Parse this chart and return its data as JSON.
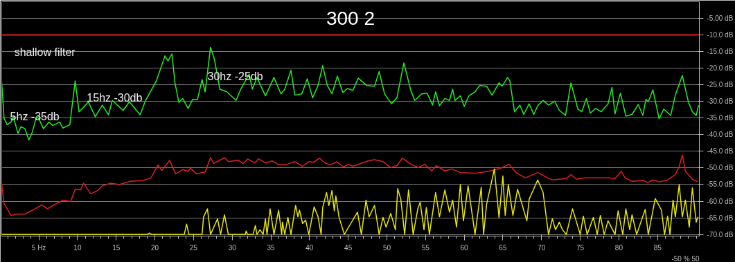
{
  "chart_data": {
    "type": "line",
    "title": "300 2",
    "xlim": [
      0.2,
      90.4
    ],
    "ylim": [
      -70.5,
      0
    ],
    "xticks": [
      {
        "value": 5,
        "label": "5 Hz"
      },
      10,
      15,
      20,
      25,
      30,
      35,
      40,
      45,
      50,
      55,
      60,
      65,
      70,
      75,
      80,
      85
    ],
    "yticks": [
      {
        "value": -5,
        "label": "-5.00 dB"
      },
      {
        "value": -10,
        "label": "-10.0 dB"
      },
      {
        "value": -15,
        "label": "-15.0 dB"
      },
      {
        "value": -20,
        "label": "-20.0 dB"
      },
      {
        "value": -25,
        "label": "-25.0 dB"
      },
      {
        "value": -30,
        "label": "-30.0 dB"
      },
      {
        "value": -35,
        "label": "-35.0 dB"
      },
      {
        "value": -40,
        "label": "-40.0 dB"
      },
      {
        "value": -45,
        "label": "-45.0 dB"
      },
      {
        "value": -50,
        "label": "-50.0 dB"
      },
      {
        "value": -55,
        "label": "-55.0 dB"
      },
      {
        "value": -60,
        "label": "-60.0 dB"
      },
      {
        "value": -65,
        "label": "-65.0 dB"
      },
      {
        "value": -70,
        "label": "-70.0 dB"
      }
    ],
    "grid": "y",
    "marker": "none",
    "line_style": "solid",
    "ref_lines": [
      {
        "axis": "y",
        "value": -10,
        "color": "#e02020"
      }
    ],
    "annotations": [
      "shallow filter",
      "5hz -35db",
      "15hz -30db",
      "30hz -25db",
      "-50 % 50"
    ],
    "series": [
      {
        "color": "#22ee22",
        "x": [
          0.2,
          0.5,
          0.9,
          1.4,
          1.7,
          2.3,
          2.7,
          3.2,
          3.7,
          4.1,
          4.7,
          5.0,
          5.6,
          6.3,
          6.8,
          7.7,
          8.1,
          9.0,
          9.7,
          10.2,
          10.8,
          11.4,
          12.3,
          13.2,
          14.0,
          14.5,
          15.9,
          16.7,
          18.1,
          18.8,
          20.2,
          20.5,
          21.3,
          21.7,
          22.2,
          22.6,
          23.1,
          23.6,
          24.3,
          24.9,
          25.5,
          26.1,
          26.5,
          27.2,
          27.7,
          28.4,
          29.3,
          30.5,
          31.1,
          32.2,
          32.6,
          33.2,
          34.3,
          35.4,
          36.3,
          36.8,
          37.6,
          38.1,
          39.0,
          39.7,
          40.4,
          41.1,
          41.7,
          42.3,
          42.9,
          43.6,
          44.3,
          44.9,
          45.6,
          46.3,
          47.4,
          48.4,
          49.0,
          49.7,
          50.6,
          51.3,
          52.2,
          53.1,
          53.6,
          54.5,
          55.2,
          55.9,
          56.3,
          56.8,
          57.5,
          58.1,
          58.5,
          58.8,
          59.5,
          60.0,
          60.6,
          61.4,
          62.0,
          62.9,
          63.6,
          64.5,
          64.9,
          65.6,
          65.9,
          66.5,
          67.2,
          67.7,
          68.4,
          69.0,
          69.5,
          70.2,
          70.9,
          71.7,
          72.3,
          73.1,
          73.8,
          74.7,
          75.2,
          75.8,
          76.3,
          77.0,
          77.7,
          78.6,
          79.1,
          79.5,
          80.2,
          80.9,
          81.7,
          82.5,
          83.1,
          83.5,
          83.8,
          84.4,
          85.2,
          85.8,
          86.7,
          87.3,
          88.2,
          89.0,
          89.5,
          90.0,
          90.3
        ],
        "values": [
          -24.4,
          -35.0,
          -37.0,
          -36.2,
          -34.6,
          -39.6,
          -37.6,
          -38.2,
          -41.6,
          -39.6,
          -34.6,
          -35.2,
          -38.2,
          -36.2,
          -37.2,
          -36.2,
          -38.0,
          -37.0,
          -23.8,
          -33.1,
          -31.7,
          -30.1,
          -34.6,
          -31.1,
          -34.0,
          -29.7,
          -32.7,
          -30.1,
          -34.0,
          -29.7,
          -23.8,
          -21.8,
          -16.3,
          -17.8,
          -15.7,
          -24.4,
          -30.3,
          -29.1,
          -32.1,
          -29.3,
          -29.5,
          -23.4,
          -27.1,
          -13.7,
          -17.3,
          -26.3,
          -27.1,
          -29.7,
          -26.3,
          -21.8,
          -26.3,
          -22.8,
          -28.3,
          -22.8,
          -27.7,
          -26.3,
          -20.6,
          -28.1,
          -27.7,
          -23.2,
          -28.9,
          -25.2,
          -19.2,
          -25.2,
          -27.7,
          -22.4,
          -27.3,
          -26.1,
          -26.7,
          -23.0,
          -25.2,
          -25.4,
          -21.0,
          -27.7,
          -30.7,
          -28.9,
          -18.4,
          -26.7,
          -29.7,
          -27.7,
          -27.5,
          -31.1,
          -27.1,
          -31.3,
          -29.1,
          -29.7,
          -26.3,
          -29.7,
          -28.3,
          -31.5,
          -28.3,
          -27.1,
          -25.2,
          -25.4,
          -28.1,
          -24.4,
          -25.4,
          -22.8,
          -23.8,
          -33.1,
          -31.1,
          -33.9,
          -30.7,
          -33.9,
          -31.3,
          -29.7,
          -31.1,
          -29.9,
          -32.7,
          -34.2,
          -24.4,
          -32.3,
          -33.1,
          -29.1,
          -33.5,
          -32.1,
          -33.1,
          -30.7,
          -25.8,
          -33.7,
          -27.5,
          -34.4,
          -33.9,
          -30.9,
          -34.2,
          -29.3,
          -30.1,
          -26.5,
          -35.2,
          -32.3,
          -34.2,
          -28.1,
          -22.2,
          -30.3,
          -33.1,
          -34.2,
          -31.1
        ]
      },
      {
        "color": "#e02020",
        "x": [
          0.2,
          0.5,
          1.4,
          2.0,
          3.2,
          4.5,
          5.4,
          6.1,
          6.8,
          8.1,
          9.1,
          9.7,
          10.4,
          10.8,
          11.7,
          12.6,
          13.2,
          14.3,
          15.4,
          16.8,
          18.4,
          19.5,
          20.4,
          20.9,
          21.9,
          22.7,
          23.6,
          24.3,
          24.6,
          25.4,
          26.5,
          27.2,
          27.6,
          29.0,
          29.5,
          30.8,
          31.4,
          32.0,
          32.9,
          33.4,
          34.3,
          35.2,
          35.9,
          36.8,
          38.1,
          39.1,
          39.9,
          40.5,
          41.3,
          42.0,
          42.7,
          43.5,
          44.4,
          45.0,
          45.6,
          46.8,
          47.6,
          48.4,
          49.5,
          50.5,
          51.3,
          52.0,
          53.1,
          54.1,
          54.9,
          55.8,
          56.4,
          57.5,
          58.4,
          59.5,
          61.4,
          63.2,
          64.7,
          65.8,
          66.7,
          67.9,
          69.5,
          70.8,
          71.4,
          73.2,
          73.8,
          74.5,
          75.6,
          78.6,
          79.5,
          80.3,
          80.8,
          81.7,
          83.2,
          83.8,
          84.4,
          85.2,
          86.3,
          87.3,
          87.8,
          88.2,
          88.6,
          89.5,
          90.2
        ],
        "values": [
          -54.8,
          -60.7,
          -64.3,
          -63.9,
          -63.9,
          -62.3,
          -61.1,
          -62.3,
          -61.3,
          -59.7,
          -60.1,
          -56.4,
          -56.6,
          -54.6,
          -57.8,
          -56.8,
          -55.4,
          -54.6,
          -55.0,
          -54.0,
          -53.8,
          -53.0,
          -49.1,
          -50.8,
          -47.7,
          -51.8,
          -50.5,
          -51.0,
          -50.1,
          -51.8,
          -51.2,
          -46.9,
          -48.7,
          -46.9,
          -48.1,
          -47.7,
          -48.7,
          -47.3,
          -48.5,
          -47.3,
          -48.5,
          -47.9,
          -48.9,
          -49.1,
          -48.1,
          -49.5,
          -48.1,
          -48.3,
          -47.1,
          -48.5,
          -49.1,
          -48.1,
          -49.7,
          -48.9,
          -49.5,
          -48.5,
          -47.9,
          -47.5,
          -48.1,
          -49.9,
          -49.3,
          -47.1,
          -48.9,
          -49.9,
          -48.9,
          -50.9,
          -49.3,
          -50.9,
          -50.3,
          -51.4,
          -51.6,
          -51.0,
          -50.1,
          -48.9,
          -51.4,
          -53.0,
          -51.4,
          -53.0,
          -53.6,
          -53.2,
          -52.0,
          -53.4,
          -53.0,
          -53.0,
          -53.2,
          -51.0,
          -53.0,
          -54.0,
          -53.8,
          -54.4,
          -53.6,
          -54.2,
          -53.6,
          -52.0,
          -49.5,
          -46.1,
          -51.0,
          -53.4,
          -54.2
        ]
      },
      {
        "color": "#e8e800",
        "x": [
          0.2,
          19.0,
          19.3,
          19.6,
          23.8,
          24.1,
          24.4,
          26.1,
          26.3,
          26.8,
          27.2,
          28.1,
          28.5,
          29.0,
          29.5,
          31.7,
          31.8,
          32.0,
          32.7,
          33.0,
          33.2,
          33.6,
          34.0,
          34.3,
          34.5,
          34.9,
          35.4,
          36.0,
          36.4,
          36.5,
          36.8,
          37.2,
          37.6,
          38.2,
          38.5,
          38.7,
          39.1,
          39.5,
          39.9,
          40.6,
          41.1,
          41.5,
          41.7,
          42.2,
          42.5,
          42.9,
          43.2,
          43.4,
          43.8,
          44.5,
          46.2,
          46.7,
          47.3,
          47.7,
          48.4,
          48.6,
          49.0,
          49.5,
          49.9,
          50.5,
          51.1,
          51.4,
          51.8,
          52.3,
          52.8,
          53.4,
          54.0,
          54.3,
          54.8,
          55.1,
          55.5,
          56.3,
          56.8,
          57.5,
          58.1,
          58.5,
          59.0,
          59.5,
          59.9,
          60.5,
          61.4,
          62.2,
          62.5,
          62.9,
          63.9,
          64.5,
          65.0,
          65.3,
          65.7,
          66.3,
          66.9,
          68.1,
          68.4,
          69.5,
          70.2,
          70.9,
          71.4,
          71.8,
          72.3,
          72.7,
          73.2,
          74.0,
          75.0,
          75.4,
          75.9,
          76.7,
          77.2,
          77.6,
          78.1,
          78.6,
          79.5,
          79.9,
          80.5,
          80.9,
          81.4,
          81.7,
          82.3,
          83.4,
          83.8,
          84.7,
          85.5,
          85.9,
          86.3,
          86.6,
          87.0,
          87.3,
          87.8,
          88.2,
          88.6,
          89.1,
          89.5,
          90.0,
          90.2
        ],
        "values": [
          -70,
          -70,
          -69.6,
          -70,
          -70,
          -66.9,
          -70,
          -70,
          -64.7,
          -62.3,
          -70,
          -65.3,
          -70,
          -64.1,
          -70,
          -70,
          -69.0,
          -70,
          -70,
          -67.3,
          -70,
          -68.6,
          -70,
          -65.3,
          -70,
          -62.3,
          -70,
          -62.7,
          -70,
          -66.3,
          -70,
          -64.9,
          -70,
          -61.3,
          -64.7,
          -62.7,
          -66.7,
          -65.7,
          -70,
          -61.7,
          -64.7,
          -70,
          -61.9,
          -57.4,
          -61.3,
          -56.8,
          -62.9,
          -58.4,
          -64.7,
          -70,
          -63.3,
          -70,
          -59.7,
          -64.7,
          -61.3,
          -64.1,
          -70,
          -64.9,
          -67.8,
          -63.7,
          -68.6,
          -56.2,
          -59.4,
          -70,
          -56.6,
          -70,
          -62.3,
          -60.3,
          -68.6,
          -61.9,
          -70,
          -57.4,
          -64.7,
          -56.6,
          -63.3,
          -59.7,
          -67.8,
          -55.0,
          -65.9,
          -55.4,
          -70,
          -55.8,
          -70,
          -60.9,
          -50.3,
          -64.9,
          -52.4,
          -64.3,
          -55.0,
          -64.3,
          -56.4,
          -65.9,
          -59.4,
          -53.6,
          -57.4,
          -70,
          -65.3,
          -68.6,
          -66.3,
          -68.6,
          -70,
          -62.3,
          -70,
          -64.5,
          -70,
          -64.9,
          -70,
          -64.3,
          -70,
          -65.9,
          -70,
          -62.9,
          -70,
          -62.3,
          -68.6,
          -64.1,
          -70,
          -62.5,
          -70,
          -59.2,
          -62.7,
          -70,
          -64.5,
          -70,
          -59.7,
          -64.7,
          -55.0,
          -64.7,
          -59.7,
          -67.8,
          -56.0,
          -66.3,
          -64.7
        ]
      }
    ]
  }
}
